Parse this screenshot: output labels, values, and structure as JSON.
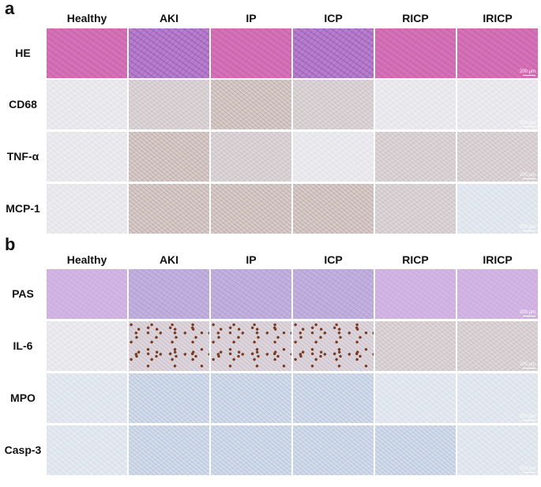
{
  "panels": [
    {
      "letter": "a",
      "columns": [
        "Healthy",
        "AKI",
        "IP",
        "ICP",
        "RICP",
        "IRICP"
      ],
      "rows": [
        {
          "label": "HE",
          "stains": [
            "he",
            "he2",
            "he",
            "he2",
            "he",
            "he"
          ]
        },
        {
          "label": "CD68",
          "stains": [
            "ihc-light",
            "ihc-mid",
            "ihc-brown",
            "ihc-mid",
            "ihc-light",
            "ihc-light"
          ]
        },
        {
          "label": "TNF-α",
          "stains": [
            "ihc-light",
            "ihc-brown",
            "ihc-mid",
            "ihc-light",
            "ihc-mid",
            "ihc-mid"
          ]
        },
        {
          "label": "MCP-1",
          "stains": [
            "ihc-light",
            "ihc-brown",
            "ihc-brown",
            "ihc-brown",
            "ihc-mid",
            "blue-l"
          ]
        }
      ]
    },
    {
      "letter": "b",
      "columns": [
        "Healthy",
        "AKI",
        "IP",
        "ICP",
        "RICP",
        "IRICP"
      ],
      "rows": [
        {
          "label": "PAS",
          "stains": [
            "pas",
            "pas2",
            "pas2",
            "pas2",
            "pas",
            "pas"
          ]
        },
        {
          "label": "IL-6",
          "stains": [
            "ihc-light",
            "il6-dots",
            "il6-dots",
            "il6-dots",
            "ihc-mid",
            "ihc-mid"
          ]
        },
        {
          "label": "MPO",
          "stains": [
            "blue-l",
            "blue-m",
            "blue-m",
            "blue-m",
            "blue-l",
            "blue-l"
          ]
        },
        {
          "label": "Casp-3",
          "stains": [
            "blue-l",
            "blue-m",
            "blue-m",
            "blue-m",
            "blue-m",
            "blue-l"
          ]
        }
      ]
    }
  ],
  "scale_bar_label": "200 μm"
}
